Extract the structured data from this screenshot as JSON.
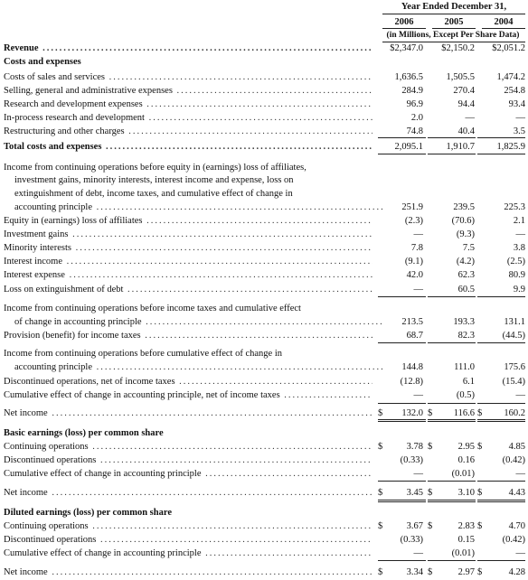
{
  "header": {
    "period": "Year Ended December 31,",
    "years": [
      "2006",
      "2005",
      "2004"
    ],
    "units": "(in Millions, Except Per Share Data)"
  },
  "rows": {
    "revenue": {
      "label": "Revenue",
      "v": [
        "$2,347.0",
        "$2,150.2",
        "$2,051.2"
      ]
    },
    "costs_header": {
      "label": "Costs and expenses"
    },
    "cost_sales": {
      "label": "Costs of sales and services",
      "v": [
        "1,636.5",
        "1,505.5",
        "1,474.2"
      ]
    },
    "sga": {
      "label": "Selling, general and administrative expenses",
      "v": [
        "284.9",
        "270.4",
        "254.8"
      ]
    },
    "rd": {
      "label": "Research and development expenses",
      "v": [
        "96.9",
        "94.4",
        "93.4"
      ]
    },
    "iprd": {
      "label": "In-process research and development",
      "v": [
        "2.0",
        "—",
        "—"
      ]
    },
    "restructuring": {
      "label": "Restructuring and other charges",
      "v": [
        "74.8",
        "40.4",
        "3.5"
      ]
    },
    "total_costs": {
      "label": "Total costs and expenses",
      "v": [
        "2,095.1",
        "1,910.7",
        "1,825.9"
      ]
    },
    "income_cont_line1": {
      "label": "Income from continuing operations before equity in (earnings) loss of affiliates,"
    },
    "income_cont_line2": {
      "label": "investment gains, minority interests, interest income and expense, loss on"
    },
    "income_cont_line3": {
      "label": "extinguishment of debt, income taxes, and cumulative effect of change in"
    },
    "income_cont_line4": {
      "label": "accounting principle",
      "v": [
        "251.9",
        "239.5",
        "225.3"
      ]
    },
    "equity": {
      "label": "Equity in (earnings) loss of affiliates",
      "v": [
        "(2.3)",
        "(70.6)",
        "2.1"
      ]
    },
    "inv_gains": {
      "label": "Investment gains",
      "v": [
        "—",
        "(9.3)",
        "—"
      ]
    },
    "minority": {
      "label": "Minority interests",
      "v": [
        "7.8",
        "7.5",
        "3.8"
      ]
    },
    "int_income": {
      "label": "Interest income",
      "v": [
        "(9.1)",
        "(4.2)",
        "(2.5)"
      ]
    },
    "int_expense": {
      "label": "Interest expense",
      "v": [
        "42.0",
        "62.3",
        "80.9"
      ]
    },
    "loss_debt": {
      "label": "Loss on extinguishment of debt",
      "v": [
        "—",
        "60.5",
        "9.9"
      ]
    },
    "before_tax_line1": {
      "label": "Income from continuing operations before income taxes and cumulative effect"
    },
    "before_tax_line2": {
      "label": "of change in accounting principle",
      "v": [
        "213.5",
        "193.3",
        "131.1"
      ]
    },
    "provision": {
      "label": "Provision (benefit) for income taxes",
      "v": [
        "68.7",
        "82.3",
        "(44.5)"
      ]
    },
    "before_cum_line1": {
      "label": "Income from continuing operations before cumulative effect of change in"
    },
    "before_cum_line2": {
      "label": "accounting principle",
      "v": [
        "144.8",
        "111.0",
        "175.6"
      ]
    },
    "discontinued": {
      "label": "Discontinued operations, net of income taxes",
      "v": [
        "(12.8)",
        "6.1",
        "(15.4)"
      ]
    },
    "cum_effect": {
      "label": "Cumulative effect of change in accounting principle, net of income taxes",
      "v": [
        "—",
        "(0.5)",
        "—"
      ]
    },
    "net_income": {
      "label": "Net income",
      "d": "$",
      "v": [
        "132.0",
        "116.6",
        "160.2"
      ]
    },
    "basic_header": {
      "label": "Basic earnings (loss) per common share"
    },
    "basic_cont": {
      "label": "Continuing operations",
      "d": "$",
      "v": [
        "3.78",
        "2.95",
        "4.85"
      ]
    },
    "basic_disc": {
      "label": "Discontinued operations",
      "v": [
        "(0.33)",
        "0.16",
        "(0.42)"
      ]
    },
    "basic_cum": {
      "label": "Cumulative effect of change in accounting principle",
      "v": [
        "—",
        "(0.01)",
        "—"
      ]
    },
    "basic_net": {
      "label": "Net income",
      "d": "$",
      "v": [
        "3.45",
        "3.10",
        "4.43"
      ]
    },
    "diluted_header": {
      "label": "Diluted earnings (loss) per common share"
    },
    "diluted_cont": {
      "label": "Continuing operations",
      "d": "$",
      "v": [
        "3.67",
        "2.83",
        "4.70"
      ]
    },
    "diluted_disc": {
      "label": "Discontinued operations",
      "v": [
        "(0.33)",
        "0.15",
        "(0.42)"
      ]
    },
    "diluted_cum": {
      "label": "Cumulative effect of change in accounting principle",
      "v": [
        "—",
        "(0.01)",
        "—"
      ]
    },
    "diluted_net": {
      "label": "Net income",
      "d": "$",
      "v": [
        "3.34",
        "2.97",
        "4.28"
      ]
    }
  }
}
